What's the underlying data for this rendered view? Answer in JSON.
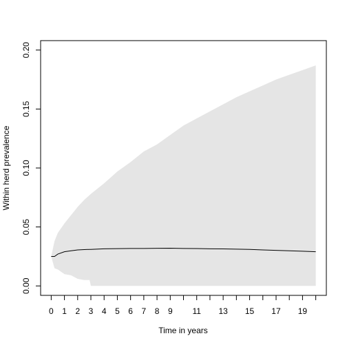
{
  "chart_data": {
    "type": "line-band",
    "x_label": "Time in years",
    "y_label": "Within herd prevalence",
    "x": [
      0,
      0.25,
      0.5,
      1,
      1.5,
      2,
      2.5,
      2.9,
      3,
      4,
      5,
      6,
      7,
      8,
      9,
      10,
      11,
      12,
      13,
      14,
      15,
      16,
      17,
      18,
      19,
      20
    ],
    "band": {
      "color": "#e5e5e5",
      "upper": [
        0.025,
        0.038,
        0.045,
        0.053,
        0.06,
        0.067,
        0.073,
        0.077,
        0.078,
        0.087,
        0.097,
        0.105,
        0.114,
        0.12,
        0.128,
        0.136,
        0.142,
        0.148,
        0.154,
        0.16,
        0.165,
        0.17,
        0.175,
        0.179,
        0.183,
        0.187
      ],
      "lower": [
        0.025,
        0.015,
        0.014,
        0.01,
        0.009,
        0.006,
        0.005,
        0.005,
        0,
        0,
        0,
        0,
        0,
        0,
        0,
        0,
        0,
        0,
        0,
        0,
        0,
        0,
        0,
        0,
        0,
        0
      ]
    },
    "line": {
      "color": "#000000",
      "values": [
        0.025,
        0.025,
        0.027,
        0.029,
        0.0298,
        0.0305,
        0.0308,
        0.031,
        0.031,
        0.0315,
        0.0316,
        0.0318,
        0.0318,
        0.0319,
        0.032,
        0.0318,
        0.0317,
        0.0315,
        0.0314,
        0.0312,
        0.031,
        0.0305,
        0.0302,
        0.0298,
        0.0294,
        0.029
      ]
    },
    "xlim": [
      -0.8,
      20.8
    ],
    "ylim": [
      -0.008,
      0.208
    ],
    "xticks": [
      0,
      1,
      2,
      3,
      4,
      5,
      6,
      7,
      8,
      9,
      {
        "value": 10,
        "label": null
      },
      11,
      {
        "value": 12,
        "label": null
      },
      13,
      {
        "value": 14,
        "label": null
      },
      15,
      {
        "value": 16,
        "label": null
      },
      17,
      {
        "value": 18,
        "label": null
      },
      19,
      {
        "value": 20,
        "label": null
      }
    ],
    "yticks": [
      {
        "value": 0,
        "label": "0.00"
      },
      0.05,
      {
        "value": 0.1,
        "label": "0.10"
      },
      0.15,
      {
        "value": 0.2,
        "label": "0.20"
      }
    ]
  }
}
